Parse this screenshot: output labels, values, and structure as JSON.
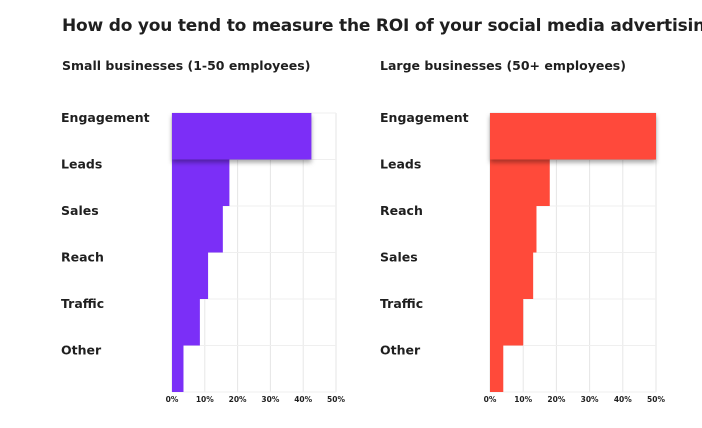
{
  "page": {
    "title": "How do you tend to measure the ROI of your social media advertising?"
  },
  "chart_data": [
    {
      "type": "bar",
      "orientation": "horizontal",
      "subtitle": "Small businesses (1-50 employees)",
      "categories": [
        "Engagement",
        "Leads",
        "Sales",
        "Reach",
        "Traffic",
        "Other"
      ],
      "values": [
        42.5,
        17.5,
        15.5,
        11.0,
        8.5,
        3.5
      ],
      "color": "#7b2ff7",
      "xlim": [
        0,
        50
      ],
      "xticks": [
        "0%",
        "10%",
        "20%",
        "30%",
        "40%",
        "50%"
      ],
      "unit": "%"
    },
    {
      "type": "bar",
      "orientation": "horizontal",
      "subtitle": "Large businesses (50+ employees)",
      "categories": [
        "Engagement",
        "Leads",
        "Reach",
        "Sales",
        "Traffic",
        "Other"
      ],
      "values": [
        50.0,
        18.0,
        14.0,
        13.0,
        10.0,
        4.0
      ],
      "color": "#ff4a3a",
      "xlim": [
        0,
        50
      ],
      "xticks": [
        "0%",
        "10%",
        "20%",
        "30%",
        "40%",
        "50%"
      ],
      "unit": "%"
    }
  ]
}
